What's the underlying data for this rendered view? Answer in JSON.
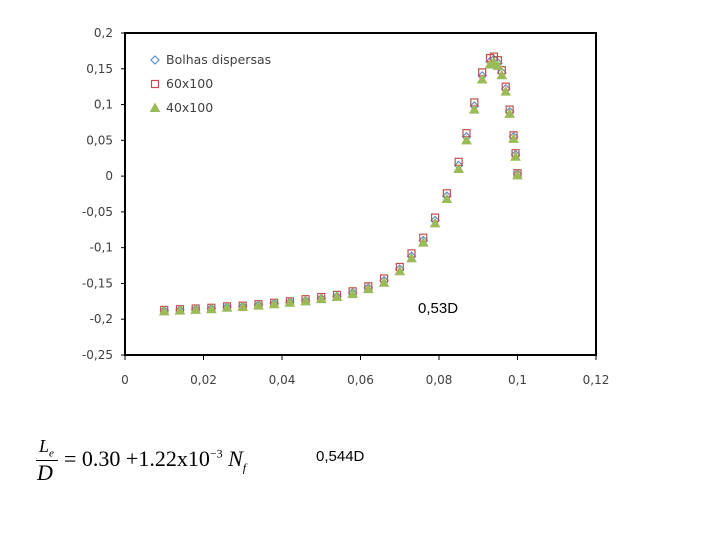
{
  "chart_data": {
    "type": "scatter",
    "xlim": [
      0,
      0.12
    ],
    "ylim": [
      -0.25,
      0.2
    ],
    "x_ticks": [
      0,
      0.02,
      0.04,
      0.06,
      0.08,
      0.1,
      0.12
    ],
    "y_ticks": [
      -0.25,
      -0.2,
      -0.15,
      -0.1,
      -0.05,
      0,
      0.05,
      0.1,
      0.15,
      0.2
    ],
    "x_tick_labels": [
      "0",
      "0,02",
      "0,04",
      "0,06",
      "0,08",
      "0,1",
      "0,12"
    ],
    "y_tick_labels": [
      "-0,25",
      "-0,2",
      "-0,15",
      "-0,1",
      "-0,05",
      "0",
      "0,05",
      "0,1",
      "0,15",
      "0,2"
    ],
    "grid": false,
    "legend_position": "top-left",
    "series": [
      {
        "name": "Bolhas dispersas",
        "marker": "diamond",
        "color": "#5f8fc2",
        "x": [
          0.01,
          0.014,
          0.018,
          0.022,
          0.026,
          0.03,
          0.034,
          0.038,
          0.042,
          0.046,
          0.05,
          0.054,
          0.058,
          0.062,
          0.066,
          0.07,
          0.073,
          0.076,
          0.079,
          0.082,
          0.085,
          0.087,
          0.089,
          0.091,
          0.093,
          0.094,
          0.095,
          0.096,
          0.097,
          0.098,
          0.099,
          0.0995,
          0.1
        ],
        "y": [
          -0.188,
          -0.187,
          -0.186,
          -0.185,
          -0.183,
          -0.182,
          -0.18,
          -0.178,
          -0.176,
          -0.174,
          -0.171,
          -0.168,
          -0.163,
          -0.156,
          -0.146,
          -0.13,
          -0.112,
          -0.09,
          -0.062,
          -0.028,
          0.015,
          0.055,
          0.098,
          0.14,
          0.16,
          0.163,
          0.158,
          0.145,
          0.122,
          0.09,
          0.055,
          0.03,
          0.003
        ]
      },
      {
        "name": "60x100",
        "marker": "square",
        "color": "#c0504d",
        "x": [
          0.01,
          0.014,
          0.018,
          0.022,
          0.026,
          0.03,
          0.034,
          0.038,
          0.042,
          0.046,
          0.05,
          0.054,
          0.058,
          0.062,
          0.066,
          0.07,
          0.073,
          0.076,
          0.079,
          0.082,
          0.085,
          0.087,
          0.089,
          0.091,
          0.093,
          0.094,
          0.095,
          0.096,
          0.097,
          0.098,
          0.099,
          0.0995,
          0.1
        ],
        "y": [
          -0.187,
          -0.186,
          -0.185,
          -0.184,
          -0.182,
          -0.181,
          -0.179,
          -0.177,
          -0.175,
          -0.172,
          -0.169,
          -0.166,
          -0.161,
          -0.154,
          -0.143,
          -0.127,
          -0.108,
          -0.086,
          -0.058,
          -0.024,
          0.02,
          0.06,
          0.103,
          0.145,
          0.165,
          0.167,
          0.162,
          0.148,
          0.125,
          0.093,
          0.057,
          0.032,
          0.004
        ]
      },
      {
        "name": "40x100",
        "marker": "triangle",
        "color": "#9bbb59",
        "x": [
          0.01,
          0.014,
          0.018,
          0.022,
          0.026,
          0.03,
          0.034,
          0.038,
          0.042,
          0.046,
          0.05,
          0.054,
          0.058,
          0.062,
          0.066,
          0.07,
          0.073,
          0.076,
          0.079,
          0.082,
          0.085,
          0.087,
          0.089,
          0.091,
          0.093,
          0.094,
          0.095,
          0.096,
          0.097,
          0.098,
          0.099,
          0.0995,
          0.1
        ],
        "y": [
          -0.189,
          -0.188,
          -0.187,
          -0.186,
          -0.184,
          -0.183,
          -0.181,
          -0.179,
          -0.177,
          -0.175,
          -0.172,
          -0.169,
          -0.165,
          -0.158,
          -0.149,
          -0.133,
          -0.115,
          -0.093,
          -0.066,
          -0.032,
          0.01,
          0.05,
          0.093,
          0.135,
          0.156,
          0.159,
          0.154,
          0.141,
          0.118,
          0.087,
          0.052,
          0.027,
          0.001
        ]
      }
    ]
  },
  "annotations": {
    "chart_note": "0,53D",
    "formula_note": "0,544D"
  },
  "formula": {
    "num_var": "L",
    "num_sub": "e",
    "den": "D",
    "rhs_main": "= 0.30 +1.22x10",
    "rhs_exp": "−3",
    "rhs_var": " N",
    "rhs_sub": "f"
  }
}
